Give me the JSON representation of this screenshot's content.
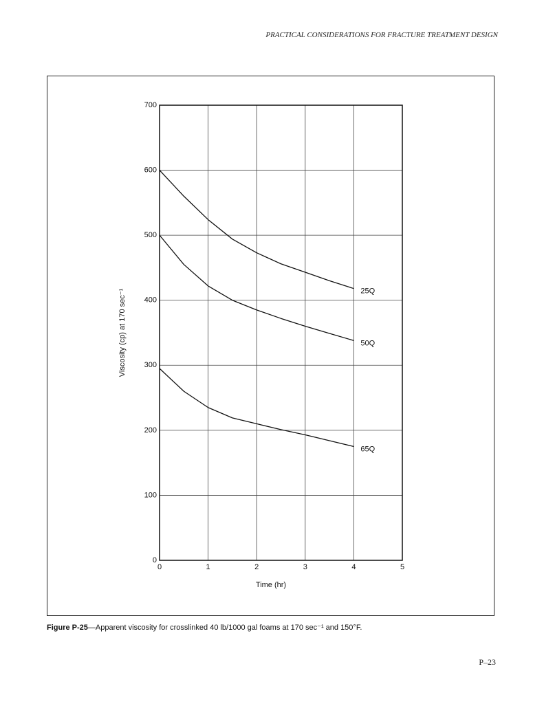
{
  "header": {
    "title": "PRACTICAL CONSIDERATIONS FOR FRACTURE TREATMENT DESIGN"
  },
  "chart_data": {
    "type": "line",
    "x_label": "Time (hr)",
    "y_label": "Viscosity (cp) at 170 sec⁻¹",
    "x": [
      0,
      0.5,
      1,
      1.5,
      2,
      2.5,
      3,
      3.5,
      4
    ],
    "series": [
      {
        "name": "25Q",
        "color": "#111111",
        "values": [
          600,
          560,
          524,
          494,
          473,
          456,
          443,
          430,
          418
        ]
      },
      {
        "name": "50Q",
        "color": "#111111",
        "values": [
          500,
          455,
          422,
          400,
          385,
          372,
          360,
          349,
          338
        ]
      },
      {
        "name": "65Q",
        "color": "#111111",
        "values": [
          295,
          260,
          235,
          219,
          210,
          201,
          193,
          184,
          175
        ]
      }
    ],
    "xlim": [
      0,
      5
    ],
    "xticks": [
      0,
      1,
      2,
      3,
      4,
      5
    ],
    "ylim": [
      0,
      700
    ],
    "yticks": [
      0,
      100,
      200,
      300,
      400,
      500,
      600,
      700
    ],
    "grid": true
  },
  "caption": {
    "label": "Figure P-25",
    "text": "—Apparent viscosity for crosslinked 40 lb/1000 gal foams at 170 sec⁻¹ and 150°F."
  },
  "footer": {
    "page": "P–23"
  }
}
